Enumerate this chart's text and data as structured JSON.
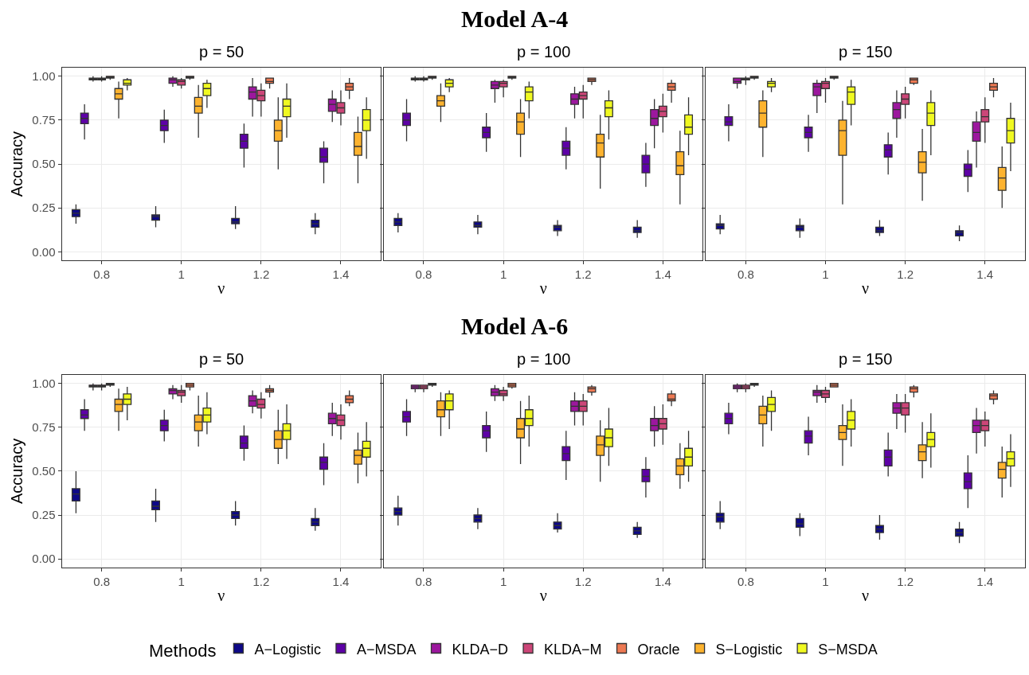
{
  "chart_data": [
    {
      "type": "box",
      "title": "p = 50",
      "annotations": [
        "Model A-4"
      ],
      "xlabel": "ν",
      "ylabel": "Accuracy",
      "categories": [
        "0.8",
        "1",
        "1.2",
        "1.4"
      ],
      "ylim": [
        -0.05,
        1.05
      ],
      "yticks": [
        {
          "value": 0,
          "label": "0.00"
        },
        {
          "value": 0.25,
          "label": "0.25"
        },
        {
          "value": 0.5,
          "label": "0.50"
        },
        {
          "value": 0.75,
          "label": "0.75"
        },
        {
          "value": 1,
          "label": "1.00"
        }
      ],
      "grid": true,
      "legend": "bottom",
      "legend_title": "Methods",
      "series": [
        {
          "name": "A−Logistic",
          "color": "#0d0887",
          "boxes": [
            {
              "low": 0.16,
              "q1": 0.2,
              "median": 0.22,
              "q3": 0.24,
              "high": 0.27
            },
            {
              "low": 0.14,
              "q1": 0.18,
              "median": 0.2,
              "q3": 0.21,
              "high": 0.26
            },
            {
              "low": 0.13,
              "q1": 0.16,
              "median": 0.17,
              "q3": 0.19,
              "high": 0.26
            },
            {
              "low": 0.1,
              "q1": 0.14,
              "median": 0.16,
              "q3": 0.18,
              "high": 0.22
            }
          ]
        },
        {
          "name": "A−MSDA",
          "color": "#5d01a6",
          "boxes": [
            {
              "low": 0.64,
              "q1": 0.73,
              "median": 0.76,
              "q3": 0.79,
              "high": 0.84
            },
            {
              "low": 0.62,
              "q1": 0.69,
              "median": 0.72,
              "q3": 0.75,
              "high": 0.81
            },
            {
              "low": 0.48,
              "q1": 0.59,
              "median": 0.63,
              "q3": 0.67,
              "high": 0.73
            },
            {
              "low": 0.39,
              "q1": 0.51,
              "median": 0.54,
              "q3": 0.59,
              "high": 0.63
            }
          ]
        },
        {
          "name": "KLDA−D",
          "color": "#9c179e",
          "boxes": [
            {
              "low": 0.97,
              "q1": 0.98,
              "median": 0.99,
              "q3": 0.99,
              "high": 1.0
            },
            {
              "low": 0.94,
              "q1": 0.96,
              "median": 0.98,
              "q3": 0.99,
              "high": 1.0
            },
            {
              "low": 0.77,
              "q1": 0.87,
              "median": 0.91,
              "q3": 0.94,
              "high": 0.99
            },
            {
              "low": 0.74,
              "q1": 0.8,
              "median": 0.84,
              "q3": 0.87,
              "high": 0.92
            }
          ]
        },
        {
          "name": "KLDA−M",
          "color": "#cc4678",
          "boxes": [
            {
              "low": 0.97,
              "q1": 0.98,
              "median": 0.99,
              "q3": 0.99,
              "high": 1.0
            },
            {
              "low": 0.93,
              "q1": 0.95,
              "median": 0.97,
              "q3": 0.98,
              "high": 0.99
            },
            {
              "low": 0.77,
              "q1": 0.86,
              "median": 0.89,
              "q3": 0.92,
              "high": 0.96
            },
            {
              "low": 0.72,
              "q1": 0.79,
              "median": 0.82,
              "q3": 0.85,
              "high": 0.92
            }
          ]
        },
        {
          "name": "Oracle",
          "color": "#ed7953",
          "boxes": [
            {
              "low": 0.98,
              "q1": 0.99,
              "median": 1.0,
              "q3": 1.0,
              "high": 1.0
            },
            {
              "low": 0.98,
              "q1": 0.99,
              "median": 0.99,
              "q3": 1.0,
              "high": 1.0
            },
            {
              "low": 0.93,
              "q1": 0.96,
              "median": 0.97,
              "q3": 0.99,
              "high": 0.99
            },
            {
              "low": 0.87,
              "q1": 0.92,
              "median": 0.94,
              "q3": 0.96,
              "high": 0.99
            }
          ]
        },
        {
          "name": "S−Logistic",
          "color": "#fdb32f",
          "boxes": [
            {
              "low": 0.76,
              "q1": 0.87,
              "median": 0.9,
              "q3": 0.93,
              "high": 0.97
            },
            {
              "low": 0.65,
              "q1": 0.79,
              "median": 0.83,
              "q3": 0.88,
              "high": 0.95
            },
            {
              "low": 0.47,
              "q1": 0.63,
              "median": 0.69,
              "q3": 0.75,
              "high": 0.88
            },
            {
              "low": 0.39,
              "q1": 0.55,
              "median": 0.6,
              "q3": 0.68,
              "high": 0.77
            }
          ]
        },
        {
          "name": "S−MSDA",
          "color": "#f0f921",
          "boxes": [
            {
              "low": 0.92,
              "q1": 0.95,
              "median": 0.96,
              "q3": 0.98,
              "high": 0.99
            },
            {
              "low": 0.82,
              "q1": 0.89,
              "median": 0.93,
              "q3": 0.96,
              "high": 0.98
            },
            {
              "low": 0.65,
              "q1": 0.77,
              "median": 0.83,
              "q3": 0.87,
              "high": 0.96
            },
            {
              "low": 0.53,
              "q1": 0.69,
              "median": 0.75,
              "q3": 0.81,
              "high": 0.88
            }
          ]
        }
      ]
    },
    {
      "type": "box",
      "title": "p = 100",
      "xlabel": "ν",
      "categories": [
        "0.8",
        "1",
        "1.2",
        "1.4"
      ],
      "ylim": [
        -0.05,
        1.05
      ],
      "tick_labels": "x",
      "grid": true,
      "series": [
        {
          "color": "#0d0887",
          "boxes": [
            {
              "low": 0.11,
              "q1": 0.15,
              "median": 0.17,
              "q3": 0.19,
              "high": 0.22
            },
            {
              "low": 0.1,
              "q1": 0.14,
              "median": 0.15,
              "q3": 0.17,
              "high": 0.21
            },
            {
              "low": 0.09,
              "q1": 0.12,
              "median": 0.14,
              "q3": 0.15,
              "high": 0.18
            },
            {
              "low": 0.08,
              "q1": 0.11,
              "median": 0.12,
              "q3": 0.14,
              "high": 0.18
            }
          ]
        },
        {
          "color": "#5d01a6",
          "boxes": [
            {
              "low": 0.63,
              "q1": 0.72,
              "median": 0.75,
              "q3": 0.79,
              "high": 0.87
            },
            {
              "low": 0.57,
              "q1": 0.65,
              "median": 0.68,
              "q3": 0.71,
              "high": 0.79
            },
            {
              "low": 0.47,
              "q1": 0.55,
              "median": 0.59,
              "q3": 0.63,
              "high": 0.71
            },
            {
              "low": 0.37,
              "q1": 0.45,
              "median": 0.5,
              "q3": 0.55,
              "high": 0.62
            }
          ]
        },
        {
          "color": "#9c179e",
          "boxes": [
            {
              "low": 0.97,
              "q1": 0.98,
              "median": 0.99,
              "q3": 0.99,
              "high": 1.0
            },
            {
              "low": 0.85,
              "q1": 0.93,
              "median": 0.95,
              "q3": 0.97,
              "high": 0.98
            },
            {
              "low": 0.76,
              "q1": 0.84,
              "median": 0.87,
              "q3": 0.9,
              "high": 0.94
            },
            {
              "low": 0.59,
              "q1": 0.72,
              "median": 0.76,
              "q3": 0.81,
              "high": 0.87
            }
          ]
        },
        {
          "color": "#cc4678",
          "boxes": [
            {
              "low": 0.97,
              "q1": 0.98,
              "median": 0.99,
              "q3": 0.99,
              "high": 1.0
            },
            {
              "low": 0.88,
              "q1": 0.94,
              "median": 0.96,
              "q3": 0.97,
              "high": 0.98
            },
            {
              "low": 0.76,
              "q1": 0.87,
              "median": 0.89,
              "q3": 0.91,
              "high": 0.95
            },
            {
              "low": 0.68,
              "q1": 0.77,
              "median": 0.8,
              "q3": 0.83,
              "high": 0.9
            }
          ]
        },
        {
          "color": "#ed7953",
          "boxes": [
            {
              "low": 0.98,
              "q1": 0.99,
              "median": 1.0,
              "q3": 1.0,
              "high": 1.0
            },
            {
              "low": 0.98,
              "q1": 0.99,
              "median": 0.99,
              "q3": 1.0,
              "high": 1.0
            },
            {
              "low": 0.95,
              "q1": 0.97,
              "median": 0.98,
              "q3": 0.99,
              "high": 0.99
            },
            {
              "low": 0.85,
              "q1": 0.92,
              "median": 0.94,
              "q3": 0.96,
              "high": 0.98
            }
          ]
        },
        {
          "color": "#fdb32f",
          "boxes": [
            {
              "low": 0.74,
              "q1": 0.83,
              "median": 0.86,
              "q3": 0.89,
              "high": 0.96
            },
            {
              "low": 0.54,
              "q1": 0.67,
              "median": 0.74,
              "q3": 0.79,
              "high": 0.87
            },
            {
              "low": 0.36,
              "q1": 0.54,
              "median": 0.62,
              "q3": 0.67,
              "high": 0.78
            },
            {
              "low": 0.27,
              "q1": 0.44,
              "median": 0.49,
              "q3": 0.57,
              "high": 0.69
            }
          ]
        },
        {
          "color": "#f0f921",
          "boxes": [
            {
              "low": 0.91,
              "q1": 0.94,
              "median": 0.96,
              "q3": 0.98,
              "high": 0.99
            },
            {
              "low": 0.76,
              "q1": 0.86,
              "median": 0.91,
              "q3": 0.94,
              "high": 0.97
            },
            {
              "low": 0.64,
              "q1": 0.77,
              "median": 0.82,
              "q3": 0.86,
              "high": 0.92
            },
            {
              "low": 0.55,
              "q1": 0.67,
              "median": 0.71,
              "q3": 0.78,
              "high": 0.88
            }
          ]
        }
      ]
    },
    {
      "type": "box",
      "title": "p = 150",
      "xlabel": "ν",
      "categories": [
        "0.8",
        "1",
        "1.2",
        "1.4"
      ],
      "ylim": [
        -0.05,
        1.05
      ],
      "tick_labels": "x",
      "grid": true,
      "series": [
        {
          "color": "#0d0887",
          "boxes": [
            {
              "low": 0.1,
              "q1": 0.13,
              "median": 0.15,
              "q3": 0.16,
              "high": 0.21
            },
            {
              "low": 0.08,
              "q1": 0.12,
              "median": 0.14,
              "q3": 0.15,
              "high": 0.19
            },
            {
              "low": 0.09,
              "q1": 0.11,
              "median": 0.12,
              "q3": 0.14,
              "high": 0.18
            },
            {
              "low": 0.06,
              "q1": 0.09,
              "median": 0.11,
              "q3": 0.12,
              "high": 0.15
            }
          ]
        },
        {
          "color": "#5d01a6",
          "boxes": [
            {
              "low": 0.63,
              "q1": 0.72,
              "median": 0.74,
              "q3": 0.77,
              "high": 0.84
            },
            {
              "low": 0.57,
              "q1": 0.65,
              "median": 0.68,
              "q3": 0.71,
              "high": 0.78
            },
            {
              "low": 0.44,
              "q1": 0.54,
              "median": 0.58,
              "q3": 0.61,
              "high": 0.68
            },
            {
              "low": 0.34,
              "q1": 0.43,
              "median": 0.47,
              "q3": 0.5,
              "high": 0.58
            }
          ]
        },
        {
          "color": "#9c179e",
          "boxes": [
            {
              "low": 0.93,
              "q1": 0.96,
              "median": 0.97,
              "q3": 0.99,
              "high": 0.99
            },
            {
              "low": 0.79,
              "q1": 0.89,
              "median": 0.94,
              "q3": 0.96,
              "high": 0.98
            },
            {
              "low": 0.65,
              "q1": 0.76,
              "median": 0.81,
              "q3": 0.85,
              "high": 0.92
            },
            {
              "low": 0.48,
              "q1": 0.63,
              "median": 0.68,
              "q3": 0.74,
              "high": 0.8
            }
          ]
        },
        {
          "color": "#cc4678",
          "boxes": [
            {
              "low": 0.95,
              "q1": 0.98,
              "median": 0.99,
              "q3": 0.99,
              "high": 1.0
            },
            {
              "low": 0.85,
              "q1": 0.93,
              "median": 0.96,
              "q3": 0.97,
              "high": 0.99
            },
            {
              "low": 0.76,
              "q1": 0.84,
              "median": 0.87,
              "q3": 0.9,
              "high": 0.94
            },
            {
              "low": 0.62,
              "q1": 0.74,
              "median": 0.77,
              "q3": 0.81,
              "high": 0.88
            }
          ]
        },
        {
          "color": "#ed7953",
          "boxes": [
            {
              "low": 0.98,
              "q1": 0.99,
              "median": 1.0,
              "q3": 1.0,
              "high": 1.0
            },
            {
              "low": 0.98,
              "q1": 0.99,
              "median": 0.99,
              "q3": 1.0,
              "high": 1.0
            },
            {
              "low": 0.95,
              "q1": 0.96,
              "median": 0.98,
              "q3": 0.99,
              "high": 0.99
            },
            {
              "low": 0.88,
              "q1": 0.92,
              "median": 0.94,
              "q3": 0.96,
              "high": 0.99
            }
          ]
        },
        {
          "color": "#fdb32f",
          "boxes": [
            {
              "low": 0.54,
              "q1": 0.71,
              "median": 0.79,
              "q3": 0.86,
              "high": 0.92
            },
            {
              "low": 0.27,
              "q1": 0.55,
              "median": 0.69,
              "q3": 0.75,
              "high": 0.86
            },
            {
              "low": 0.29,
              "q1": 0.45,
              "median": 0.51,
              "q3": 0.57,
              "high": 0.7
            },
            {
              "low": 0.25,
              "q1": 0.35,
              "median": 0.42,
              "q3": 0.48,
              "high": 0.6
            }
          ]
        },
        {
          "color": "#f0f921",
          "boxes": [
            {
              "low": 0.91,
              "q1": 0.94,
              "median": 0.96,
              "q3": 0.97,
              "high": 0.99
            },
            {
              "low": 0.72,
              "q1": 0.84,
              "median": 0.91,
              "q3": 0.94,
              "high": 0.98
            },
            {
              "low": 0.55,
              "q1": 0.72,
              "median": 0.79,
              "q3": 0.85,
              "high": 0.92
            },
            {
              "low": 0.46,
              "q1": 0.62,
              "median": 0.69,
              "q3": 0.76,
              "high": 0.85
            }
          ]
        }
      ]
    },
    {
      "type": "box",
      "title": "p = 50",
      "annotations": [
        "Model A-6"
      ],
      "xlabel": "ν",
      "ylabel": "Accuracy",
      "categories": [
        "0.8",
        "1",
        "1.2",
        "1.4"
      ],
      "ylim": [
        -0.05,
        1.05
      ],
      "yticks": [
        {
          "value": 0,
          "label": "0.00"
        },
        {
          "value": 0.25,
          "label": "0.25"
        },
        {
          "value": 0.5,
          "label": "0.50"
        },
        {
          "value": 0.75,
          "label": "0.75"
        },
        {
          "value": 1,
          "label": "1.00"
        }
      ],
      "grid": true,
      "series": [
        {
          "color": "#0d0887",
          "boxes": [
            {
              "low": 0.26,
              "q1": 0.33,
              "median": 0.37,
              "q3": 0.4,
              "high": 0.5
            },
            {
              "low": 0.21,
              "q1": 0.28,
              "median": 0.3,
              "q3": 0.33,
              "high": 0.4
            },
            {
              "low": 0.19,
              "q1": 0.23,
              "median": 0.25,
              "q3": 0.27,
              "high": 0.33
            },
            {
              "low": 0.16,
              "q1": 0.19,
              "median": 0.21,
              "q3": 0.23,
              "high": 0.29
            }
          ]
        },
        {
          "color": "#5d01a6",
          "boxes": [
            {
              "low": 0.73,
              "q1": 0.8,
              "median": 0.82,
              "q3": 0.85,
              "high": 0.91
            },
            {
              "low": 0.67,
              "q1": 0.73,
              "median": 0.76,
              "q3": 0.79,
              "high": 0.85
            },
            {
              "low": 0.56,
              "q1": 0.63,
              "median": 0.66,
              "q3": 0.7,
              "high": 0.76
            },
            {
              "low": 0.42,
              "q1": 0.51,
              "median": 0.55,
              "q3": 0.58,
              "high": 0.66
            }
          ]
        },
        {
          "color": "#9c179e",
          "boxes": [
            {
              "low": 0.96,
              "q1": 0.98,
              "median": 0.99,
              "q3": 0.99,
              "high": 1.0
            },
            {
              "low": 0.91,
              "q1": 0.94,
              "median": 0.96,
              "q3": 0.97,
              "high": 0.99
            },
            {
              "low": 0.83,
              "q1": 0.87,
              "median": 0.9,
              "q3": 0.93,
              "high": 0.96
            },
            {
              "low": 0.7,
              "q1": 0.77,
              "median": 0.8,
              "q3": 0.83,
              "high": 0.89
            }
          ]
        },
        {
          "color": "#cc4678",
          "boxes": [
            {
              "low": 0.96,
              "q1": 0.98,
              "median": 0.99,
              "q3": 0.99,
              "high": 1.0
            },
            {
              "low": 0.89,
              "q1": 0.93,
              "median": 0.95,
              "q3": 0.96,
              "high": 0.99
            },
            {
              "low": 0.8,
              "q1": 0.86,
              "median": 0.88,
              "q3": 0.91,
              "high": 0.95
            },
            {
              "low": 0.68,
              "q1": 0.76,
              "median": 0.79,
              "q3": 0.82,
              "high": 0.88
            }
          ]
        },
        {
          "color": "#ed7953",
          "boxes": [
            {
              "low": 0.98,
              "q1": 0.99,
              "median": 1.0,
              "q3": 1.0,
              "high": 1.0
            },
            {
              "low": 0.96,
              "q1": 0.98,
              "median": 0.99,
              "q3": 1.0,
              "high": 1.0
            },
            {
              "low": 0.92,
              "q1": 0.95,
              "median": 0.96,
              "q3": 0.97,
              "high": 0.99
            },
            {
              "low": 0.87,
              "q1": 0.89,
              "median": 0.91,
              "q3": 0.93,
              "high": 0.96
            }
          ]
        },
        {
          "color": "#fdb32f",
          "boxes": [
            {
              "low": 0.73,
              "q1": 0.84,
              "median": 0.88,
              "q3": 0.91,
              "high": 0.97
            },
            {
              "low": 0.64,
              "q1": 0.73,
              "median": 0.78,
              "q3": 0.82,
              "high": 0.93
            },
            {
              "low": 0.54,
              "q1": 0.63,
              "median": 0.68,
              "q3": 0.73,
              "high": 0.85
            },
            {
              "low": 0.43,
              "q1": 0.54,
              "median": 0.59,
              "q3": 0.62,
              "high": 0.72
            }
          ]
        },
        {
          "color": "#f0f921",
          "boxes": [
            {
              "low": 0.79,
              "q1": 0.88,
              "median": 0.91,
              "q3": 0.94,
              "high": 0.98
            },
            {
              "low": 0.71,
              "q1": 0.78,
              "median": 0.82,
              "q3": 0.86,
              "high": 0.95
            },
            {
              "low": 0.57,
              "q1": 0.68,
              "median": 0.73,
              "q3": 0.77,
              "high": 0.88
            },
            {
              "low": 0.47,
              "q1": 0.58,
              "median": 0.63,
              "q3": 0.67,
              "high": 0.78
            }
          ]
        }
      ]
    },
    {
      "type": "box",
      "title": "p = 100",
      "xlabel": "ν",
      "categories": [
        "0.8",
        "1",
        "1.2",
        "1.4"
      ],
      "ylim": [
        -0.05,
        1.05
      ],
      "tick_labels": "x",
      "grid": true,
      "series": [
        {
          "color": "#0d0887",
          "boxes": [
            {
              "low": 0.19,
              "q1": 0.25,
              "median": 0.27,
              "q3": 0.29,
              "high": 0.36
            },
            {
              "low": 0.17,
              "q1": 0.21,
              "median": 0.23,
              "q3": 0.25,
              "high": 0.29
            },
            {
              "low": 0.15,
              "q1": 0.17,
              "median": 0.19,
              "q3": 0.21,
              "high": 0.26
            },
            {
              "low": 0.12,
              "q1": 0.14,
              "median": 0.16,
              "q3": 0.18,
              "high": 0.21
            }
          ]
        },
        {
          "color": "#5d01a6",
          "boxes": [
            {
              "low": 0.7,
              "q1": 0.78,
              "median": 0.81,
              "q3": 0.84,
              "high": 0.91
            },
            {
              "low": 0.61,
              "q1": 0.69,
              "median": 0.73,
              "q3": 0.76,
              "high": 0.84
            },
            {
              "low": 0.45,
              "q1": 0.56,
              "median": 0.6,
              "q3": 0.64,
              "high": 0.73
            },
            {
              "low": 0.35,
              "q1": 0.44,
              "median": 0.47,
              "q3": 0.51,
              "high": 0.58
            }
          ]
        },
        {
          "color": "#9c179e",
          "boxes": [
            {
              "low": 0.95,
              "q1": 0.97,
              "median": 0.98,
              "q3": 0.99,
              "high": 0.99
            },
            {
              "low": 0.9,
              "q1": 0.93,
              "median": 0.95,
              "q3": 0.97,
              "high": 0.99
            },
            {
              "low": 0.76,
              "q1": 0.84,
              "median": 0.87,
              "q3": 0.9,
              "high": 0.95
            },
            {
              "low": 0.64,
              "q1": 0.73,
              "median": 0.76,
              "q3": 0.8,
              "high": 0.87
            }
          ]
        },
        {
          "color": "#cc4678",
          "boxes": [
            {
              "low": 0.95,
              "q1": 0.97,
              "median": 0.98,
              "q3": 0.99,
              "high": 0.99
            },
            {
              "low": 0.9,
              "q1": 0.93,
              "median": 0.94,
              "q3": 0.96,
              "high": 0.98
            },
            {
              "low": 0.76,
              "q1": 0.84,
              "median": 0.87,
              "q3": 0.9,
              "high": 0.94
            },
            {
              "low": 0.65,
              "q1": 0.74,
              "median": 0.77,
              "q3": 0.8,
              "high": 0.88
            }
          ]
        },
        {
          "color": "#ed7953",
          "boxes": [
            {
              "low": 0.98,
              "q1": 0.99,
              "median": 1.0,
              "q3": 1.0,
              "high": 1.0
            },
            {
              "low": 0.97,
              "q1": 0.98,
              "median": 0.99,
              "q3": 1.0,
              "high": 1.0
            },
            {
              "low": 0.93,
              "q1": 0.95,
              "median": 0.97,
              "q3": 0.98,
              "high": 0.99
            },
            {
              "low": 0.87,
              "q1": 0.9,
              "median": 0.91,
              "q3": 0.94,
              "high": 0.96
            }
          ]
        },
        {
          "color": "#fdb32f",
          "boxes": [
            {
              "low": 0.7,
              "q1": 0.81,
              "median": 0.85,
              "q3": 0.9,
              "high": 0.95
            },
            {
              "low": 0.54,
              "q1": 0.69,
              "median": 0.74,
              "q3": 0.8,
              "high": 0.9
            },
            {
              "low": 0.44,
              "q1": 0.59,
              "median": 0.65,
              "q3": 0.7,
              "high": 0.79
            },
            {
              "low": 0.4,
              "q1": 0.48,
              "median": 0.53,
              "q3": 0.57,
              "high": 0.66
            }
          ]
        },
        {
          "color": "#f0f921",
          "boxes": [
            {
              "low": 0.74,
              "q1": 0.85,
              "median": 0.9,
              "q3": 0.94,
              "high": 0.96
            },
            {
              "low": 0.64,
              "q1": 0.76,
              "median": 0.8,
              "q3": 0.85,
              "high": 0.93
            },
            {
              "low": 0.53,
              "q1": 0.64,
              "median": 0.69,
              "q3": 0.74,
              "high": 0.86
            },
            {
              "low": 0.44,
              "q1": 0.53,
              "median": 0.58,
              "q3": 0.63,
              "high": 0.73
            }
          ]
        }
      ]
    },
    {
      "type": "box",
      "title": "p = 150",
      "xlabel": "ν",
      "categories": [
        "0.8",
        "1",
        "1.2",
        "1.4"
      ],
      "ylim": [
        -0.05,
        1.05
      ],
      "tick_labels": "x",
      "grid": true,
      "series": [
        {
          "color": "#0d0887",
          "boxes": [
            {
              "low": 0.17,
              "q1": 0.21,
              "median": 0.24,
              "q3": 0.26,
              "high": 0.33
            },
            {
              "low": 0.13,
              "q1": 0.18,
              "median": 0.2,
              "q3": 0.23,
              "high": 0.26
            },
            {
              "low": 0.11,
              "q1": 0.15,
              "median": 0.17,
              "q3": 0.19,
              "high": 0.25
            },
            {
              "low": 0.09,
              "q1": 0.13,
              "median": 0.15,
              "q3": 0.17,
              "high": 0.21
            }
          ]
        },
        {
          "color": "#5d01a6",
          "boxes": [
            {
              "low": 0.71,
              "q1": 0.77,
              "median": 0.8,
              "q3": 0.83,
              "high": 0.89
            },
            {
              "low": 0.59,
              "q1": 0.66,
              "median": 0.7,
              "q3": 0.73,
              "high": 0.81
            },
            {
              "low": 0.47,
              "q1": 0.53,
              "median": 0.58,
              "q3": 0.62,
              "high": 0.72
            },
            {
              "low": 0.29,
              "q1": 0.4,
              "median": 0.44,
              "q3": 0.49,
              "high": 0.59
            }
          ]
        },
        {
          "color": "#9c179e",
          "boxes": [
            {
              "low": 0.95,
              "q1": 0.97,
              "median": 0.98,
              "q3": 0.99,
              "high": 1.0
            },
            {
              "low": 0.89,
              "q1": 0.93,
              "median": 0.95,
              "q3": 0.96,
              "high": 0.99
            },
            {
              "low": 0.74,
              "q1": 0.83,
              "median": 0.86,
              "q3": 0.89,
              "high": 0.94
            },
            {
              "low": 0.6,
              "q1": 0.72,
              "median": 0.76,
              "q3": 0.79,
              "high": 0.86
            }
          ]
        },
        {
          "color": "#cc4678",
          "boxes": [
            {
              "low": 0.95,
              "q1": 0.97,
              "median": 0.98,
              "q3": 0.99,
              "high": 1.0
            },
            {
              "low": 0.89,
              "q1": 0.92,
              "median": 0.94,
              "q3": 0.96,
              "high": 0.98
            },
            {
              "low": 0.72,
              "q1": 0.82,
              "median": 0.86,
              "q3": 0.89,
              "high": 0.94
            },
            {
              "low": 0.64,
              "q1": 0.73,
              "median": 0.76,
              "q3": 0.79,
              "high": 0.84
            }
          ]
        },
        {
          "color": "#ed7953",
          "boxes": [
            {
              "low": 0.98,
              "q1": 0.99,
              "median": 1.0,
              "q3": 1.0,
              "high": 1.0
            },
            {
              "low": 0.98,
              "q1": 0.98,
              "median": 0.99,
              "q3": 1.0,
              "high": 1.0
            },
            {
              "low": 0.92,
              "q1": 0.95,
              "median": 0.97,
              "q3": 0.98,
              "high": 0.99
            },
            {
              "low": 0.88,
              "q1": 0.91,
              "median": 0.93,
              "q3": 0.94,
              "high": 0.96
            }
          ]
        },
        {
          "color": "#fdb32f",
          "boxes": [
            {
              "low": 0.64,
              "q1": 0.77,
              "median": 0.82,
              "q3": 0.87,
              "high": 0.93
            },
            {
              "low": 0.53,
              "q1": 0.68,
              "median": 0.72,
              "q3": 0.76,
              "high": 0.88
            },
            {
              "low": 0.46,
              "q1": 0.56,
              "median": 0.61,
              "q3": 0.65,
              "high": 0.78
            },
            {
              "low": 0.35,
              "q1": 0.46,
              "median": 0.51,
              "q3": 0.55,
              "high": 0.64
            }
          ]
        },
        {
          "color": "#f0f921",
          "boxes": [
            {
              "low": 0.73,
              "q1": 0.84,
              "median": 0.88,
              "q3": 0.92,
              "high": 0.96
            },
            {
              "low": 0.64,
              "q1": 0.74,
              "median": 0.79,
              "q3": 0.84,
              "high": 0.91
            },
            {
              "low": 0.52,
              "q1": 0.64,
              "median": 0.68,
              "q3": 0.72,
              "high": 0.83
            },
            {
              "low": 0.41,
              "q1": 0.53,
              "median": 0.57,
              "q3": 0.61,
              "high": 0.71
            }
          ]
        }
      ]
    }
  ]
}
